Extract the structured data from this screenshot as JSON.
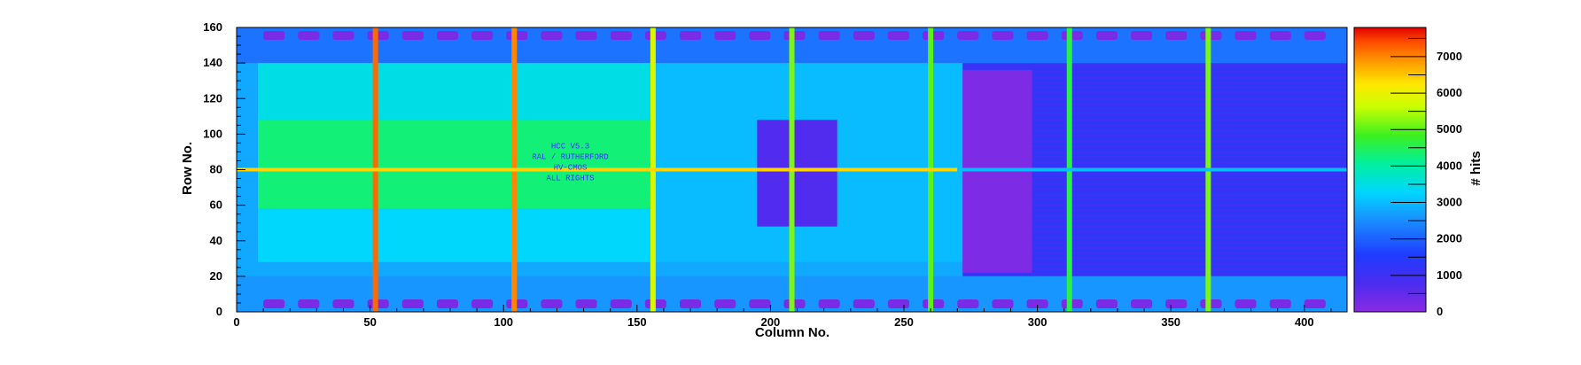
{
  "chart_data": {
    "type": "heatmap",
    "title": "",
    "xlabel": "Column No.",
    "ylabel": "Row No.",
    "zlabel": "# hits",
    "xlim": [
      0,
      416
    ],
    "ylim": [
      0,
      160
    ],
    "zlim": [
      0,
      7800
    ],
    "x_ticks": [
      0,
      50,
      100,
      150,
      200,
      250,
      300,
      350,
      400
    ],
    "y_ticks": [
      0,
      20,
      40,
      60,
      80,
      100,
      120,
      140,
      160
    ],
    "z_ticks": [
      0,
      1000,
      2000,
      3000,
      4000,
      5000,
      6000,
      7000
    ],
    "chip_labels": [
      "HCC V5.3",
      "RAL / RUTHERFORD",
      "HV-CMOS",
      "ALL RIGHTS"
    ],
    "regions": [
      {
        "name": "base",
        "x": [
          0,
          416
        ],
        "y": [
          0,
          160
        ],
        "value": 2800
      },
      {
        "name": "left-core",
        "x": [
          8,
          155
        ],
        "y": [
          58,
          108
        ],
        "value": 4300
      },
      {
        "name": "left-mid",
        "x": [
          8,
          155
        ],
        "y": [
          108,
          150
        ],
        "value": 3500
      },
      {
        "name": "left-lower",
        "x": [
          8,
          155
        ],
        "y": [
          28,
          58
        ],
        "value": 3300
      },
      {
        "name": "center-block",
        "x": [
          155,
          272
        ],
        "y": [
          28,
          150
        ],
        "value": 3000
      },
      {
        "name": "dense-block",
        "x": [
          195,
          225
        ],
        "y": [
          48,
          108
        ],
        "value": 700
      },
      {
        "name": "right-array",
        "x": [
          272,
          416
        ],
        "y": [
          20,
          140
        ],
        "value": 1100
      },
      {
        "name": "right-dense",
        "x": [
          272,
          298
        ],
        "y": [
          22,
          136
        ],
        "value": 150
      },
      {
        "name": "bottom-strip",
        "x": [
          0,
          416
        ],
        "y": [
          0,
          20
        ],
        "value": 2600
      },
      {
        "name": "top-strip",
        "x": [
          0,
          416
        ],
        "y": [
          140,
          160
        ],
        "value": 2200
      }
    ],
    "hot_columns": [
      {
        "x": 52,
        "value": 7200
      },
      {
        "x": 104,
        "value": 7000
      },
      {
        "x": 156,
        "value": 5800
      },
      {
        "x": 208,
        "value": 5200
      },
      {
        "x": 260,
        "value": 5000
      },
      {
        "x": 312,
        "value": 4600
      },
      {
        "x": 364,
        "value": 5200
      }
    ],
    "hot_rows": [
      {
        "y": 80,
        "x": [
          0,
          270
        ],
        "value": 6400
      },
      {
        "y": 80,
        "x": [
          270,
          416
        ],
        "value": 3000
      }
    ]
  }
}
